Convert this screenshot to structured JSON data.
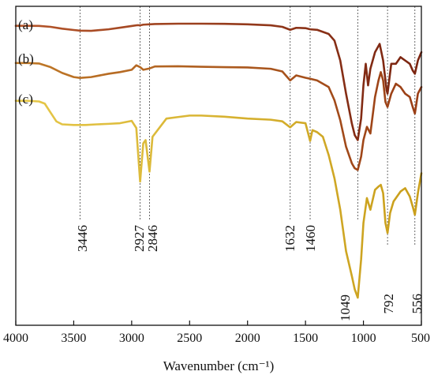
{
  "chart_data": {
    "type": "line",
    "title": "",
    "xlabel": "Wavenumber (cm⁻¹)",
    "ylabel": "",
    "xlim": [
      4000,
      500
    ],
    "x_reversed": true,
    "grid": false,
    "xticks": [
      4000,
      3500,
      3000,
      2500,
      2000,
      1500,
      1000,
      500
    ],
    "xtick_labels": [
      "4000",
      "3500",
      "3000",
      "2500",
      "2000",
      "1500",
      "1000",
      "500"
    ],
    "peak_markers": [
      {
        "x": 3446,
        "label": "3446"
      },
      {
        "x": 2927,
        "label": "2927"
      },
      {
        "x": 2846,
        "label": "2846"
      },
      {
        "x": 1632,
        "label": "1632"
      },
      {
        "x": 1460,
        "label": "1460"
      },
      {
        "x": 1049,
        "label": "1049"
      },
      {
        "x": 792,
        "label": "792"
      },
      {
        "x": 556,
        "label": "556"
      }
    ],
    "series": [
      {
        "name": "(a)",
        "color": "#b5562a",
        "color_end": "#7a2410",
        "points": [
          [
            4000,
            0.9
          ],
          [
            3900,
            0.9
          ],
          [
            3800,
            0.88
          ],
          [
            3700,
            0.3
          ],
          [
            3600,
            -0.8
          ],
          [
            3500,
            -1.6
          ],
          [
            3446,
            -2.0
          ],
          [
            3350,
            -2.1
          ],
          [
            3200,
            -1.2
          ],
          [
            3100,
            -0.2
          ],
          [
            3000,
            0.8
          ],
          [
            2950,
            1.3
          ],
          [
            2927,
            1.2
          ],
          [
            2900,
            1.6
          ],
          [
            2846,
            1.8
          ],
          [
            2800,
            2.0
          ],
          [
            2600,
            2.2
          ],
          [
            2400,
            2.2
          ],
          [
            2200,
            2.1
          ],
          [
            2000,
            1.8
          ],
          [
            1800,
            1.2
          ],
          [
            1700,
            0.3
          ],
          [
            1632,
            -1.5
          ],
          [
            1580,
            -0.3
          ],
          [
            1500,
            -0.5
          ],
          [
            1460,
            -1.2
          ],
          [
            1400,
            -1.5
          ],
          [
            1300,
            -4.0
          ],
          [
            1250,
            -8
          ],
          [
            1200,
            -20
          ],
          [
            1150,
            -40
          ],
          [
            1100,
            -58
          ],
          [
            1075,
            -65
          ],
          [
            1049,
            -68
          ],
          [
            1020,
            -55
          ],
          [
            1000,
            -35
          ],
          [
            980,
            -22
          ],
          [
            960,
            -35
          ],
          [
            940,
            -25
          ],
          [
            900,
            -15
          ],
          [
            860,
            -10
          ],
          [
            830,
            -20
          ],
          [
            800,
            -38
          ],
          [
            792,
            -40
          ],
          [
            760,
            -22
          ],
          [
            720,
            -22
          ],
          [
            680,
            -18
          ],
          [
            640,
            -20
          ],
          [
            600,
            -22
          ],
          [
            575,
            -26
          ],
          [
            556,
            -28
          ],
          [
            530,
            -20
          ],
          [
            500,
            -15
          ]
        ]
      },
      {
        "name": "(b)",
        "color": "#c07a28",
        "color_end": "#9a3e16",
        "points": [
          [
            4000,
            -21.5
          ],
          [
            3900,
            -21.5
          ],
          [
            3800,
            -21.8
          ],
          [
            3700,
            -24
          ],
          [
            3600,
            -27.5
          ],
          [
            3500,
            -30
          ],
          [
            3446,
            -30.5
          ],
          [
            3350,
            -30
          ],
          [
            3200,
            -28
          ],
          [
            3100,
            -27
          ],
          [
            3000,
            -25.6
          ],
          [
            2960,
            -22.9
          ],
          [
            2927,
            -24
          ],
          [
            2900,
            -25.6
          ],
          [
            2846,
            -24.8
          ],
          [
            2800,
            -23.6
          ],
          [
            2600,
            -23.5
          ],
          [
            2400,
            -23.8
          ],
          [
            2200,
            -24
          ],
          [
            2000,
            -24.2
          ],
          [
            1800,
            -25
          ],
          [
            1700,
            -26.6
          ],
          [
            1632,
            -32
          ],
          [
            1580,
            -29
          ],
          [
            1500,
            -30.4
          ],
          [
            1460,
            -31
          ],
          [
            1400,
            -32
          ],
          [
            1300,
            -36
          ],
          [
            1250,
            -44
          ],
          [
            1200,
            -56
          ],
          [
            1150,
            -72
          ],
          [
            1100,
            -82
          ],
          [
            1075,
            -85
          ],
          [
            1049,
            -86
          ],
          [
            1020,
            -78
          ],
          [
            1000,
            -68
          ],
          [
            970,
            -60
          ],
          [
            940,
            -64
          ],
          [
            900,
            -42
          ],
          [
            870,
            -32
          ],
          [
            850,
            -27
          ],
          [
            830,
            -32
          ],
          [
            810,
            -45
          ],
          [
            792,
            -48
          ],
          [
            760,
            -40
          ],
          [
            720,
            -34
          ],
          [
            680,
            -36
          ],
          [
            640,
            -40
          ],
          [
            600,
            -42
          ],
          [
            575,
            -48
          ],
          [
            556,
            -52
          ],
          [
            530,
            -40
          ],
          [
            500,
            -36
          ]
        ]
      },
      {
        "name": "(c)",
        "color": "#e6c84a",
        "color_end": "#c99e1a",
        "points": [
          [
            4000,
            -44.3
          ],
          [
            3900,
            -44.3
          ],
          [
            3800,
            -44.7
          ],
          [
            3750,
            -46
          ],
          [
            3700,
            -51.4
          ],
          [
            3650,
            -56.7
          ],
          [
            3600,
            -58.5
          ],
          [
            3500,
            -58.9
          ],
          [
            3400,
            -58.9
          ],
          [
            3300,
            -58.5
          ],
          [
            3200,
            -58.2
          ],
          [
            3100,
            -57.8
          ],
          [
            3000,
            -56.4
          ],
          [
            2960,
            -60.7
          ],
          [
            2927,
            -93
          ],
          [
            2900,
            -70
          ],
          [
            2880,
            -68
          ],
          [
            2846,
            -87
          ],
          [
            2820,
            -66
          ],
          [
            2700,
            -55
          ],
          [
            2600,
            -54.1
          ],
          [
            2500,
            -53.2
          ],
          [
            2400,
            -53.2
          ],
          [
            2200,
            -53.9
          ],
          [
            2000,
            -55
          ],
          [
            1800,
            -55.7
          ],
          [
            1700,
            -56.7
          ],
          [
            1632,
            -60.3
          ],
          [
            1580,
            -57.1
          ],
          [
            1500,
            -57.8
          ],
          [
            1460,
            -68.5
          ],
          [
            1440,
            -62
          ],
          [
            1400,
            -63.2
          ],
          [
            1350,
            -66
          ],
          [
            1300,
            -77
          ],
          [
            1250,
            -91
          ],
          [
            1200,
            -110
          ],
          [
            1150,
            -135
          ],
          [
            1100,
            -150
          ],
          [
            1075,
            -158
          ],
          [
            1049,
            -163
          ],
          [
            1020,
            -140
          ],
          [
            1000,
            -118
          ],
          [
            970,
            -103
          ],
          [
            940,
            -110
          ],
          [
            900,
            -98
          ],
          [
            870,
            -96
          ],
          [
            850,
            -95
          ],
          [
            830,
            -100
          ],
          [
            810,
            -118
          ],
          [
            792,
            -124
          ],
          [
            770,
            -112
          ],
          [
            740,
            -105
          ],
          [
            710,
            -102
          ],
          [
            680,
            -99
          ],
          [
            640,
            -97
          ],
          [
            600,
            -102
          ],
          [
            575,
            -108
          ],
          [
            556,
            -113
          ],
          [
            530,
            -100
          ],
          [
            500,
            -88
          ]
        ]
      }
    ]
  }
}
